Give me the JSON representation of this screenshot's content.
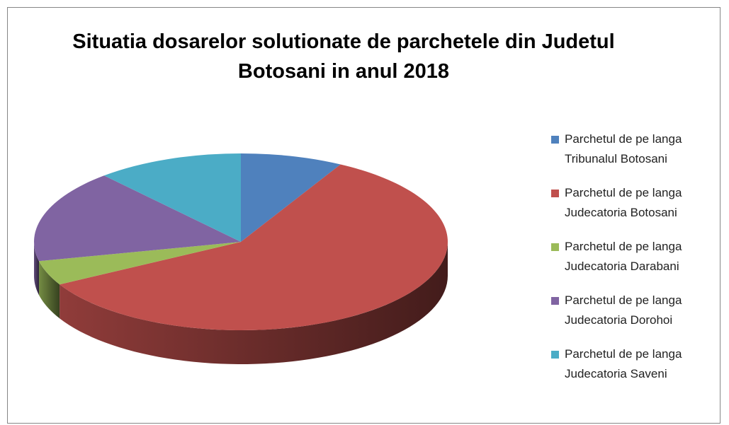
{
  "chart_data": {
    "type": "pie3d",
    "title": "Situatia dosarelor solutionate de parchetele din Judetul Botosani in anul 2018",
    "categories": [
      "Parchetul de pe langa Tribunalul Botosani",
      "Parchetul de pe langa Judecatoria Botosani",
      "Parchetul de pe langa Judecatoria Darabani",
      "Parchetul de pe langa Judecatoria Dorohoi",
      "Parchetul de pe langa Judecatoria Saveni"
    ],
    "values": [
      8,
      59,
      4.5,
      17,
      11.5
    ],
    "colors": [
      "#4f81bd",
      "#c0504d",
      "#9bbb59",
      "#8064a2",
      "#4bacc6"
    ],
    "legend": "right"
  }
}
